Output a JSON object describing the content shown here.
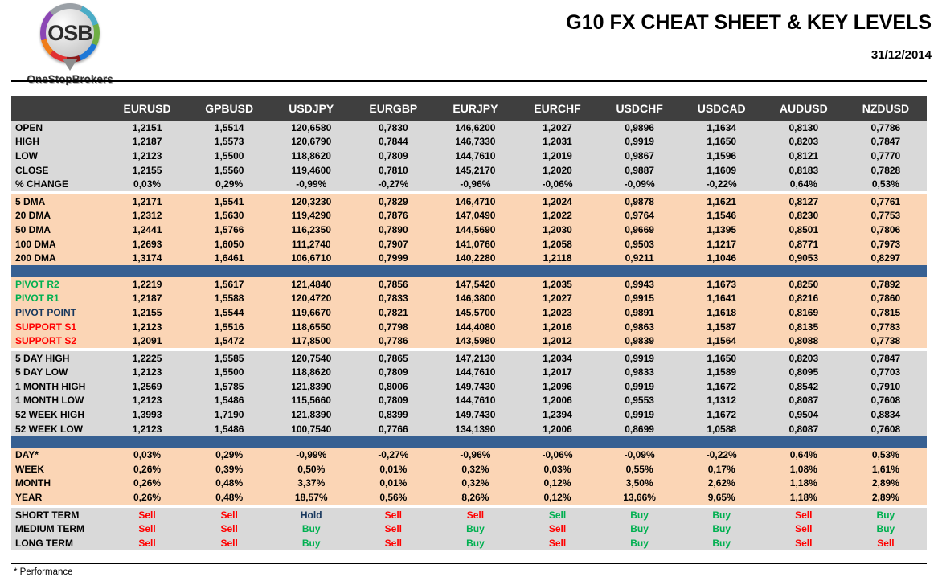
{
  "header": {
    "logo": {
      "text": "OSB",
      "subtitle": "OneStopBrokers"
    },
    "title": "G10 FX CHEAT SHEET & KEY LEVELS",
    "date": "31/12/2014"
  },
  "colors": {
    "header_bar": "#3f3f3f",
    "section_gray": "#d9d9d9",
    "section_peach": "#fbd5b5",
    "divider_blue": "#376092",
    "red": "#ff0000",
    "green": "#00b050",
    "navy": "#17375d"
  },
  "footer": {
    "note": "* Performance"
  },
  "table": {
    "columns": [
      "EURUSD",
      "GPBUSD",
      "USDJPY",
      "EURGBP",
      "EURJPY",
      "EURCHF",
      "USDCHF",
      "USDCAD",
      "AUDUSD",
      "NZDUSD"
    ],
    "sections": [
      {
        "type": "rows",
        "name": "ohlc",
        "bg": "gray",
        "rows": [
          {
            "label": "OPEN",
            "values": [
              "1,2151",
              "1,5514",
              "120,6580",
              "0,7830",
              "146,6200",
              "1,2027",
              "0,9896",
              "1,1634",
              "0,8130",
              "0,7786"
            ]
          },
          {
            "label": "HIGH",
            "values": [
              "1,2187",
              "1,5573",
              "120,6790",
              "0,7844",
              "146,7330",
              "1,2031",
              "0,9919",
              "1,1650",
              "0,8203",
              "0,7847"
            ]
          },
          {
            "label": "LOW",
            "values": [
              "1,2123",
              "1,5500",
              "118,8620",
              "0,7809",
              "144,7610",
              "1,2019",
              "0,9867",
              "1,1596",
              "0,8121",
              "0,7770"
            ]
          },
          {
            "label": "CLOSE",
            "values": [
              "1,2155",
              "1,5560",
              "119,4600",
              "0,7810",
              "145,2170",
              "1,2020",
              "0,9887",
              "1,1609",
              "0,8183",
              "0,7828"
            ]
          },
          {
            "label": "% CHANGE",
            "values": [
              "0,03%",
              "0,29%",
              "-0,99%",
              "-0,27%",
              "-0,96%",
              "-0,06%",
              "-0,09%",
              "-0,22%",
              "0,64%",
              "0,53%"
            ]
          }
        ]
      },
      {
        "type": "gap"
      },
      {
        "type": "rows",
        "name": "dma",
        "bg": "peach",
        "rows": [
          {
            "label": "5 DMA",
            "values": [
              "1,2171",
              "1,5541",
              "120,3230",
              "0,7829",
              "146,4710",
              "1,2024",
              "0,9878",
              "1,1621",
              "0,8127",
              "0,7761"
            ]
          },
          {
            "label": "20 DMA",
            "values": [
              "1,2312",
              "1,5630",
              "119,4290",
              "0,7876",
              "147,0490",
              "1,2022",
              "0,9764",
              "1,1546",
              "0,8230",
              "0,7753"
            ]
          },
          {
            "label": "50 DMA",
            "values": [
              "1,2441",
              "1,5766",
              "116,2350",
              "0,7890",
              "144,5690",
              "1,2030",
              "0,9669",
              "1,1395",
              "0,8501",
              "0,7806"
            ]
          },
          {
            "label": "100 DMA",
            "values": [
              "1,2693",
              "1,6050",
              "111,2740",
              "0,7907",
              "141,0760",
              "1,2058",
              "0,9503",
              "1,1217",
              "0,8771",
              "0,7973"
            ]
          },
          {
            "label": "200 DMA",
            "values": [
              "1,3174",
              "1,6461",
              "106,6710",
              "0,7999",
              "140,2280",
              "1,2118",
              "0,9211",
              "1,1046",
              "0,9053",
              "0,8297"
            ]
          }
        ]
      },
      {
        "type": "divider"
      },
      {
        "type": "rows",
        "name": "pivots",
        "bg": "peach",
        "rows": [
          {
            "label": "PIVOT R2",
            "lc": "green",
            "values": [
              "1,2219",
              "1,5617",
              "121,4840",
              "0,7856",
              "147,5420",
              "1,2035",
              "0,9943",
              "1,1673",
              "0,8250",
              "0,7892"
            ]
          },
          {
            "label": "PIVOT R1",
            "lc": "green",
            "values": [
              "1,2187",
              "1,5588",
              "120,4720",
              "0,7833",
              "146,3800",
              "1,2027",
              "0,9915",
              "1,1641",
              "0,8216",
              "0,7860"
            ]
          },
          {
            "label": "PIVOT POINT",
            "lc": "navy",
            "values": [
              "1,2155",
              "1,5544",
              "119,6670",
              "0,7821",
              "145,5700",
              "1,2023",
              "0,9891",
              "1,1618",
              "0,8169",
              "0,7815"
            ]
          },
          {
            "label": "SUPPORT S1",
            "lc": "red",
            "values": [
              "1,2123",
              "1,5516",
              "118,6550",
              "0,7798",
              "144,4080",
              "1,2016",
              "0,9863",
              "1,1587",
              "0,8135",
              "0,7783"
            ]
          },
          {
            "label": "SUPPORT S2",
            "lc": "red",
            "values": [
              "1,2091",
              "1,5472",
              "117,8500",
              "0,7786",
              "143,5980",
              "1,2012",
              "0,9839",
              "1,1564",
              "0,8088",
              "0,7738"
            ]
          }
        ]
      },
      {
        "type": "gap"
      },
      {
        "type": "rows",
        "name": "ranges",
        "bg": "gray",
        "rows": [
          {
            "label": "5 DAY HIGH",
            "values": [
              "1,2225",
              "1,5585",
              "120,7540",
              "0,7865",
              "147,2130",
              "1,2034",
              "0,9919",
              "1,1650",
              "0,8203",
              "0,7847"
            ]
          },
          {
            "label": "5 DAY LOW",
            "values": [
              "1,2123",
              "1,5500",
              "118,8620",
              "0,7809",
              "144,7610",
              "1,2017",
              "0,9833",
              "1,1589",
              "0,8095",
              "0,7703"
            ]
          },
          {
            "label": "1 MONTH HIGH",
            "values": [
              "1,2569",
              "1,5785",
              "121,8390",
              "0,8006",
              "149,7430",
              "1,2096",
              "0,9919",
              "1,1672",
              "0,8542",
              "0,7910"
            ]
          },
          {
            "label": "1 MONTH LOW",
            "values": [
              "1,2123",
              "1,5486",
              "115,5660",
              "0,7809",
              "144,7610",
              "1,2006",
              "0,9553",
              "1,1312",
              "0,8087",
              "0,7608"
            ]
          },
          {
            "label": "52 WEEK HIGH",
            "values": [
              "1,3993",
              "1,7190",
              "121,8390",
              "0,8399",
              "149,7430",
              "1,2394",
              "0,9919",
              "1,1672",
              "0,9504",
              "0,8834"
            ]
          },
          {
            "label": "52 WEEK LOW",
            "values": [
              "1,2123",
              "1,5486",
              "100,7540",
              "0,7766",
              "134,1390",
              "1,2006",
              "0,8699",
              "1,0588",
              "0,8087",
              "0,7608"
            ]
          }
        ]
      },
      {
        "type": "divider"
      },
      {
        "type": "rows",
        "name": "performance",
        "bg": "peach",
        "rows": [
          {
            "label": "DAY*",
            "values": [
              "0,03%",
              "0,29%",
              "-0,99%",
              "-0,27%",
              "-0,96%",
              "-0,06%",
              "-0,09%",
              "-0,22%",
              "0,64%",
              "0,53%"
            ]
          },
          {
            "label": "WEEK",
            "values": [
              "0,26%",
              "0,39%",
              "0,50%",
              "0,01%",
              "0,32%",
              "0,03%",
              "0,55%",
              "0,17%",
              "1,08%",
              "1,61%"
            ]
          },
          {
            "label": "MONTH",
            "values": [
              "0,26%",
              "0,48%",
              "3,37%",
              "0,01%",
              "0,32%",
              "0,12%",
              "3,50%",
              "2,62%",
              "1,18%",
              "2,89%"
            ]
          },
          {
            "label": "YEAR",
            "values": [
              "0,26%",
              "0,48%",
              "18,57%",
              "0,56%",
              "8,26%",
              "0,12%",
              "13,66%",
              "9,65%",
              "1,18%",
              "2,89%"
            ]
          }
        ]
      },
      {
        "type": "gap"
      },
      {
        "type": "rows",
        "name": "signals",
        "bg": "gray",
        "rows": [
          {
            "label": "SHORT TERM",
            "values": [
              {
                "t": "Sell",
                "c": "red"
              },
              {
                "t": "Sell",
                "c": "red"
              },
              {
                "t": "Hold",
                "c": "navy"
              },
              {
                "t": "Sell",
                "c": "red"
              },
              {
                "t": "Sell",
                "c": "red"
              },
              {
                "t": "Sell",
                "c": "green"
              },
              {
                "t": "Buy",
                "c": "green"
              },
              {
                "t": "Buy",
                "c": "green"
              },
              {
                "t": "Sell",
                "c": "red"
              },
              {
                "t": "Buy",
                "c": "green"
              }
            ]
          },
          {
            "label": "MEDIUM TERM",
            "values": [
              {
                "t": "Sell",
                "c": "red"
              },
              {
                "t": "Sell",
                "c": "red"
              },
              {
                "t": "Buy",
                "c": "green"
              },
              {
                "t": "Sell",
                "c": "red"
              },
              {
                "t": "Buy",
                "c": "green"
              },
              {
                "t": "Sell",
                "c": "red"
              },
              {
                "t": "Buy",
                "c": "green"
              },
              {
                "t": "Buy",
                "c": "green"
              },
              {
                "t": "Sell",
                "c": "red"
              },
              {
                "t": "Buy",
                "c": "green"
              }
            ]
          },
          {
            "label": "LONG TERM",
            "values": [
              {
                "t": "Sell",
                "c": "red"
              },
              {
                "t": "Sell",
                "c": "red"
              },
              {
                "t": "Buy",
                "c": "green"
              },
              {
                "t": "Sell",
                "c": "red"
              },
              {
                "t": "Buy",
                "c": "green"
              },
              {
                "t": "Sell",
                "c": "red"
              },
              {
                "t": "Buy",
                "c": "green"
              },
              {
                "t": "Buy",
                "c": "green"
              },
              {
                "t": "Sell",
                "c": "red"
              },
              {
                "t": "Sell",
                "c": "red"
              }
            ]
          }
        ]
      }
    ]
  }
}
